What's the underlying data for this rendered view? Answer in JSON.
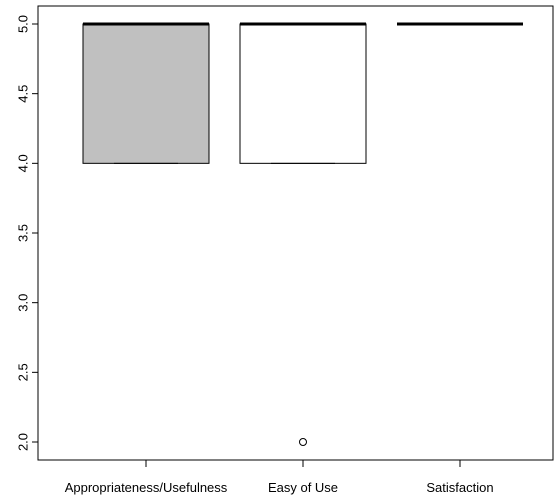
{
  "chart_data": {
    "type": "boxplot",
    "categories": [
      "Appropriateness/Usefulness",
      "Easy of Use",
      "Satisfaction"
    ],
    "boxes": [
      {
        "category": "Appropriateness/Usefulness",
        "whisker_low": 4.0,
        "q1": 4.0,
        "median": 5.0,
        "q3": 5.0,
        "whisker_high": 5.0,
        "outliers": [],
        "fill": "#c0c0c0"
      },
      {
        "category": "Easy of Use",
        "whisker_low": 4.0,
        "q1": 4.0,
        "median": 5.0,
        "q3": 5.0,
        "whisker_high": 5.0,
        "outliers": [
          2.0
        ],
        "fill": "#ffffff"
      },
      {
        "category": "Satisfaction",
        "whisker_low": 5.0,
        "q1": 5.0,
        "median": 5.0,
        "q3": 5.0,
        "whisker_high": 5.0,
        "outliers": [],
        "fill": "#ffffff"
      }
    ],
    "yticks": [
      "2.0",
      "2.5",
      "3.0",
      "3.5",
      "4.0",
      "4.5",
      "5.0"
    ],
    "ylim": [
      2.0,
      5.0
    ],
    "grid": false,
    "title": "",
    "xlabel": "",
    "ylabel": ""
  }
}
